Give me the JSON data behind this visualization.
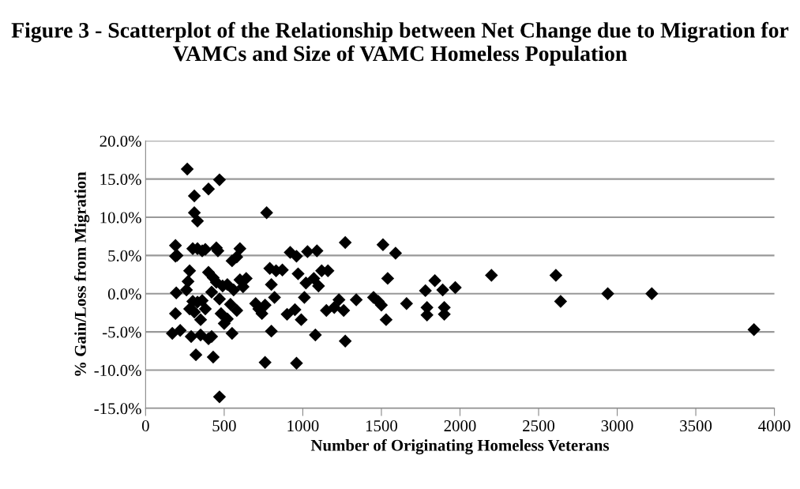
{
  "chart_data": {
    "type": "scatter",
    "title": "Figure 3 - Scatterplot of the Relationship between Net Change due to Migration for VAMCs and Size of VAMC Homeless Population",
    "xlabel": "Number of Originating Homeless Veterans",
    "ylabel": "% Gain/Loss from Migration",
    "xlim": [
      0,
      4000
    ],
    "xticks": [
      0,
      500,
      1000,
      1500,
      2000,
      2500,
      3000,
      3500,
      4000
    ],
    "ylim": [
      -15,
      20
    ],
    "yticks": [
      {
        "value": -15,
        "label": "-15.0%"
      },
      {
        "value": -10,
        "label": "-10.0%"
      },
      {
        "value": -5,
        "label": "-5.0%"
      },
      {
        "value": 0,
        "label": "0.0%"
      },
      {
        "value": 5,
        "label": "5.0%"
      },
      {
        "value": 10,
        "label": "10.0%"
      },
      {
        "value": 15,
        "label": "15.0%"
      },
      {
        "value": 20,
        "label": "20.0%"
      }
    ],
    "grid": "y",
    "marker": "diamond",
    "legend": false,
    "series": [
      {
        "color": "#000000",
        "x": [
          170,
          190,
          190,
          195,
          190,
          220,
          200,
          265,
          310,
          310,
          330,
          290,
          320,
          400,
          470,
          300,
          330,
          360,
          380,
          450,
          460,
          280,
          330,
          260,
          270,
          280,
          300,
          310,
          350,
          360,
          380,
          400,
          420,
          430,
          450,
          470,
          480,
          490,
          520,
          540,
          350,
          400,
          420,
          430,
          470,
          500,
          520,
          550,
          550,
          580,
          600,
          600,
          620,
          640,
          580,
          560,
          700,
          720,
          740,
          760,
          760,
          770,
          790,
          800,
          820,
          800,
          830,
          870,
          900,
          920,
          950,
          960,
          960,
          970,
          990,
          1010,
          1020,
          1030,
          1070,
          1090,
          1080,
          1100,
          1120,
          1160,
          1150,
          1200,
          1230,
          1270,
          1260,
          1270,
          1340,
          1450,
          1480,
          1500,
          1510,
          1530,
          1540,
          1590,
          1660,
          1780,
          1790,
          1790,
          1840,
          1890,
          1900,
          1900,
          1970,
          2200,
          2610,
          2640,
          2940,
          3220,
          3870
        ],
        "values": [
          -5.2,
          6.3,
          4.9,
          0.1,
          -2.6,
          -4.8,
          5.0,
          16.3,
          12.8,
          10.6,
          9.5,
          -5.6,
          -8.0,
          13.7,
          14.9,
          5.9,
          5.9,
          5.6,
          5.8,
          6.0,
          5.6,
          3.0,
          -1.1,
          0.5,
          1.6,
          -2.0,
          -1.0,
          -2.4,
          -3.4,
          -0.9,
          -2.0,
          2.8,
          0.2,
          2.1,
          1.5,
          -0.7,
          -2.6,
          1.0,
          1.2,
          -1.4,
          -5.4,
          -5.9,
          -5.6,
          -8.3,
          -13.5,
          -3.9,
          -3.3,
          -5.2,
          4.3,
          4.8,
          5.9,
          1.8,
          0.9,
          2.0,
          -2.2,
          0.5,
          -1.3,
          -2.0,
          -2.6,
          -1.5,
          -9.0,
          10.6,
          3.3,
          1.2,
          -0.5,
          -4.9,
          3.0,
          3.1,
          -2.7,
          5.4,
          -2.1,
          -9.1,
          4.9,
          2.6,
          -3.4,
          -0.5,
          1.4,
          5.5,
          2.0,
          5.6,
          -5.4,
          1.0,
          3.0,
          3.0,
          -2.2,
          -1.8,
          -0.8,
          6.7,
          -2.2,
          -6.2,
          -0.8,
          -0.5,
          -1.0,
          -1.5,
          6.4,
          -3.4,
          2.0,
          5.3,
          -1.3,
          0.4,
          -1.8,
          -2.8,
          1.7,
          0.5,
          -1.8,
          -2.7,
          0.8,
          2.4,
          2.4,
          -1.0,
          0.0,
          0.0,
          -4.7
        ]
      }
    ]
  }
}
